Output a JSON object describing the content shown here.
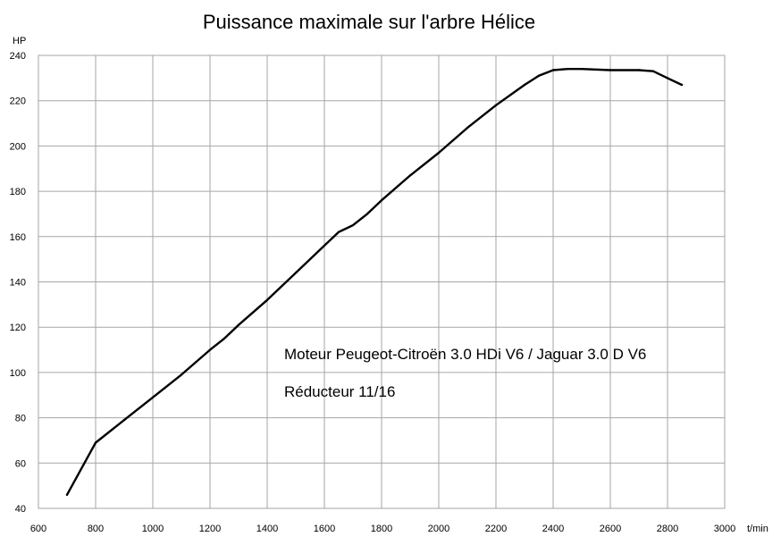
{
  "chart_data": {
    "type": "line",
    "title": "Puissance maximale sur l'arbre Hélice",
    "ylabel": "HP",
    "xlabel": "t/min",
    "xlim": [
      600,
      3000
    ],
    "ylim": [
      40,
      240
    ],
    "xticks": [
      600,
      800,
      1000,
      1200,
      1400,
      1600,
      1800,
      2000,
      2200,
      2400,
      2600,
      2800,
      3000
    ],
    "yticks": [
      40,
      60,
      80,
      100,
      120,
      140,
      160,
      180,
      200,
      220,
      240
    ],
    "grid": true,
    "annotations": [
      "Moteur Peugeot-Citroën 3.0 HDi V6 / Jaguar 3.0 D V6",
      "Réducteur 11/16"
    ],
    "series": [
      {
        "x": [
          700,
          800,
          900,
          1000,
          1100,
          1200,
          1250,
          1300,
          1400,
          1500,
          1600,
          1650,
          1700,
          1750,
          1800,
          1900,
          2000,
          2100,
          2200,
          2300,
          2350,
          2400,
          2450,
          2500,
          2600,
          2700,
          2750,
          2800,
          2850
        ],
        "y": [
          46,
          69,
          79,
          89,
          99,
          110,
          115,
          121,
          132,
          144,
          156,
          162,
          165,
          170,
          176,
          187,
          197,
          208,
          218,
          227,
          231,
          233.5,
          234,
          234,
          233.5,
          233.5,
          233,
          230,
          227
        ]
      }
    ]
  }
}
